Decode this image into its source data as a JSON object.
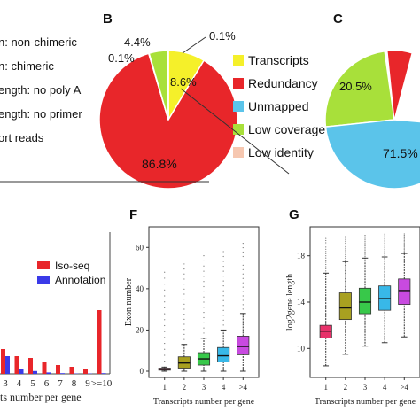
{
  "panel_a_legend": [
    {
      "text": "n: non-chimeric",
      "color": "#2a2a2a"
    },
    {
      "text": "n: chimeric",
      "color": "#2a2a2a"
    },
    {
      "text": "ength: no poly A",
      "color": "#2a2a2a"
    },
    {
      "text": "ength: no primer",
      "color": "#2a2a2a"
    },
    {
      "text": "ort reads",
      "color": "#2a2a2a"
    }
  ],
  "chart_data": [
    {
      "id": "B",
      "type": "pie",
      "panel_label": "B",
      "slices": [
        {
          "name": "Transcripts",
          "value": 8.6,
          "label": "8.6%",
          "color": "#f5f02a"
        },
        {
          "name": "Redundancy",
          "value": 86.8,
          "label": "86.8%",
          "color": "#e8262a"
        },
        {
          "name": "Unmapped",
          "value": 0.1,
          "label": "0.1%",
          "color": "#5bc4ea"
        },
        {
          "name": "Low coverage",
          "value": 4.4,
          "label": "4.4%",
          "color": "#a8e03a"
        },
        {
          "name": "Low identity",
          "value": 0.1,
          "label": "0.1%",
          "color": "#f6c7b0"
        }
      ],
      "legend_position": "right"
    },
    {
      "id": "C",
      "type": "pie",
      "panel_label": "C",
      "slices": [
        {
          "name": "Low coverage",
          "value": 20.5,
          "label": "20.5%",
          "color": "#a8e03a"
        },
        {
          "name": "Unmapped",
          "value": 71.5,
          "label": "71.5%",
          "color": "#5bc4ea"
        }
      ]
    },
    {
      "id": "E",
      "type": "bar",
      "categories": [
        "3",
        "4",
        "5",
        "6",
        "7",
        "8",
        "9",
        ">=10"
      ],
      "xlabel": "ts number per gene",
      "ylim": [
        0,
        40
      ],
      "series": [
        {
          "name": "Iso-seq",
          "color": "#e8262a",
          "values": [
            7,
            5,
            4.5,
            3.5,
            2.5,
            2,
            1.5,
            18
          ]
        },
        {
          "name": "Annotation",
          "color": "#3a3ae8",
          "values": [
            5,
            1.5,
            0.8,
            0.4,
            0.2,
            0.1,
            0.1,
            0.2
          ]
        }
      ],
      "legend_position": "top-right"
    },
    {
      "id": "F",
      "type": "box",
      "panel_label": "F",
      "categories": [
        "1",
        "2",
        "3",
        "4",
        ">4"
      ],
      "xlabel": "Transcripts number per gene",
      "ylabel": "Exon number",
      "ylim": [
        -3,
        70
      ],
      "yticks": [
        0,
        20,
        40,
        60
      ],
      "boxes": [
        {
          "q1": 0.5,
          "median": 1,
          "q3": 1.5,
          "whisk_lo": 0,
          "whisk_hi": 2,
          "out_max": 48,
          "color": "#e8326a"
        },
        {
          "q1": 1.5,
          "median": 4,
          "q3": 7,
          "whisk_lo": 0,
          "whisk_hi": 13,
          "out_max": 52,
          "color": "#a8a020"
        },
        {
          "q1": 3,
          "median": 6,
          "q3": 9,
          "whisk_lo": 0,
          "whisk_hi": 16,
          "out_max": 56,
          "color": "#38c84a"
        },
        {
          "q1": 4.5,
          "median": 7.5,
          "q3": 11.5,
          "whisk_lo": 0,
          "whisk_hi": 20,
          "out_max": 58,
          "color": "#38b8e8"
        },
        {
          "q1": 8,
          "median": 12,
          "q3": 17,
          "whisk_lo": 0,
          "whisk_hi": 28,
          "out_max": 62,
          "color": "#c84ae0"
        }
      ]
    },
    {
      "id": "G",
      "type": "box",
      "panel_label": "G",
      "categories": [
        "1",
        "2",
        "3",
        "4",
        ">4"
      ],
      "xlabel": "Transcripts number per gene",
      "ylabel": "log2gene length",
      "ylim": [
        7.5,
        20.5
      ],
      "yticks": [
        10,
        14,
        18
      ],
      "boxes": [
        {
          "q1": 10.9,
          "median": 11.5,
          "q3": 12.0,
          "whisk_lo": 8.5,
          "whisk_hi": 16.5,
          "out_max": 19.5,
          "color": "#e8326a"
        },
        {
          "q1": 12.5,
          "median": 13.5,
          "q3": 14.8,
          "whisk_lo": 9.5,
          "whisk_hi": 17.5,
          "out_max": 19.8,
          "color": "#a8a020"
        },
        {
          "q1": 13.0,
          "median": 14.0,
          "q3": 15.2,
          "whisk_lo": 10.2,
          "whisk_hi": 17.8,
          "out_max": 19.9,
          "color": "#38c84a"
        },
        {
          "q1": 13.3,
          "median": 14.3,
          "q3": 15.4,
          "whisk_lo": 10.5,
          "whisk_hi": 17.9,
          "out_max": 20.0,
          "color": "#38b8e8"
        },
        {
          "q1": 13.8,
          "median": 15.0,
          "q3": 16.0,
          "whisk_lo": 11.0,
          "whisk_hi": 18.2,
          "out_max": 20.0,
          "color": "#c84ae0"
        }
      ]
    }
  ]
}
